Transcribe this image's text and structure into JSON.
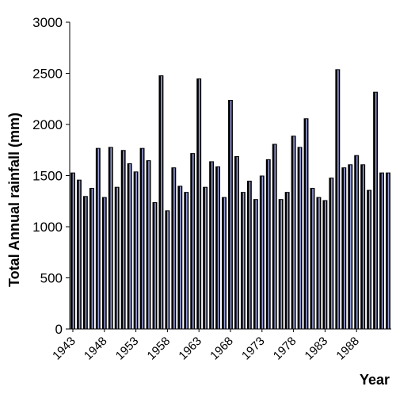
{
  "chart_data": {
    "type": "bar",
    "title": "",
    "xlabel": "Year",
    "ylabel": "Total Annual rainfall (mm)",
    "ylim": [
      0,
      3000
    ],
    "yticks": [
      "0",
      "500",
      "1000",
      "1500",
      "2000",
      "2500",
      "3000"
    ],
    "x_tick_labels": [
      "1943",
      "1948",
      "1953",
      "1958",
      "1963",
      "1968",
      "1973",
      "1978",
      "1983",
      "1988"
    ],
    "categories": [
      1943,
      1944,
      1945,
      1946,
      1947,
      1948,
      1949,
      1950,
      1951,
      1952,
      1953,
      1954,
      1955,
      1956,
      1957,
      1958,
      1959,
      1960,
      1961,
      1962,
      1963,
      1964,
      1965,
      1966,
      1967,
      1968,
      1969,
      1970,
      1971,
      1972,
      1973,
      1974,
      1975,
      1976,
      1977,
      1978,
      1979,
      1980,
      1981,
      1982,
      1983,
      1984,
      1985,
      1986,
      1987,
      1988,
      1989,
      1990,
      1991,
      1992,
      1993
    ],
    "values": [
      1530,
      1460,
      1300,
      1380,
      1770,
      1290,
      1780,
      1390,
      1750,
      1620,
      1540,
      1770,
      1650,
      1240,
      2480,
      1160,
      1580,
      1400,
      1340,
      1720,
      2450,
      1390,
      1640,
      1590,
      1290,
      2240,
      1690,
      1340,
      1450,
      1270,
      1500,
      1660,
      1810,
      1270,
      1340,
      1890,
      1780,
      2060,
      1380,
      1290,
      1260,
      1480,
      2540,
      1580,
      1610,
      1700,
      1610,
      1360,
      2320,
      1530,
      1530
    ],
    "bar_fill": "#000000",
    "bar_highlight": "#9aa0dc",
    "grid": false,
    "legend": false
  }
}
